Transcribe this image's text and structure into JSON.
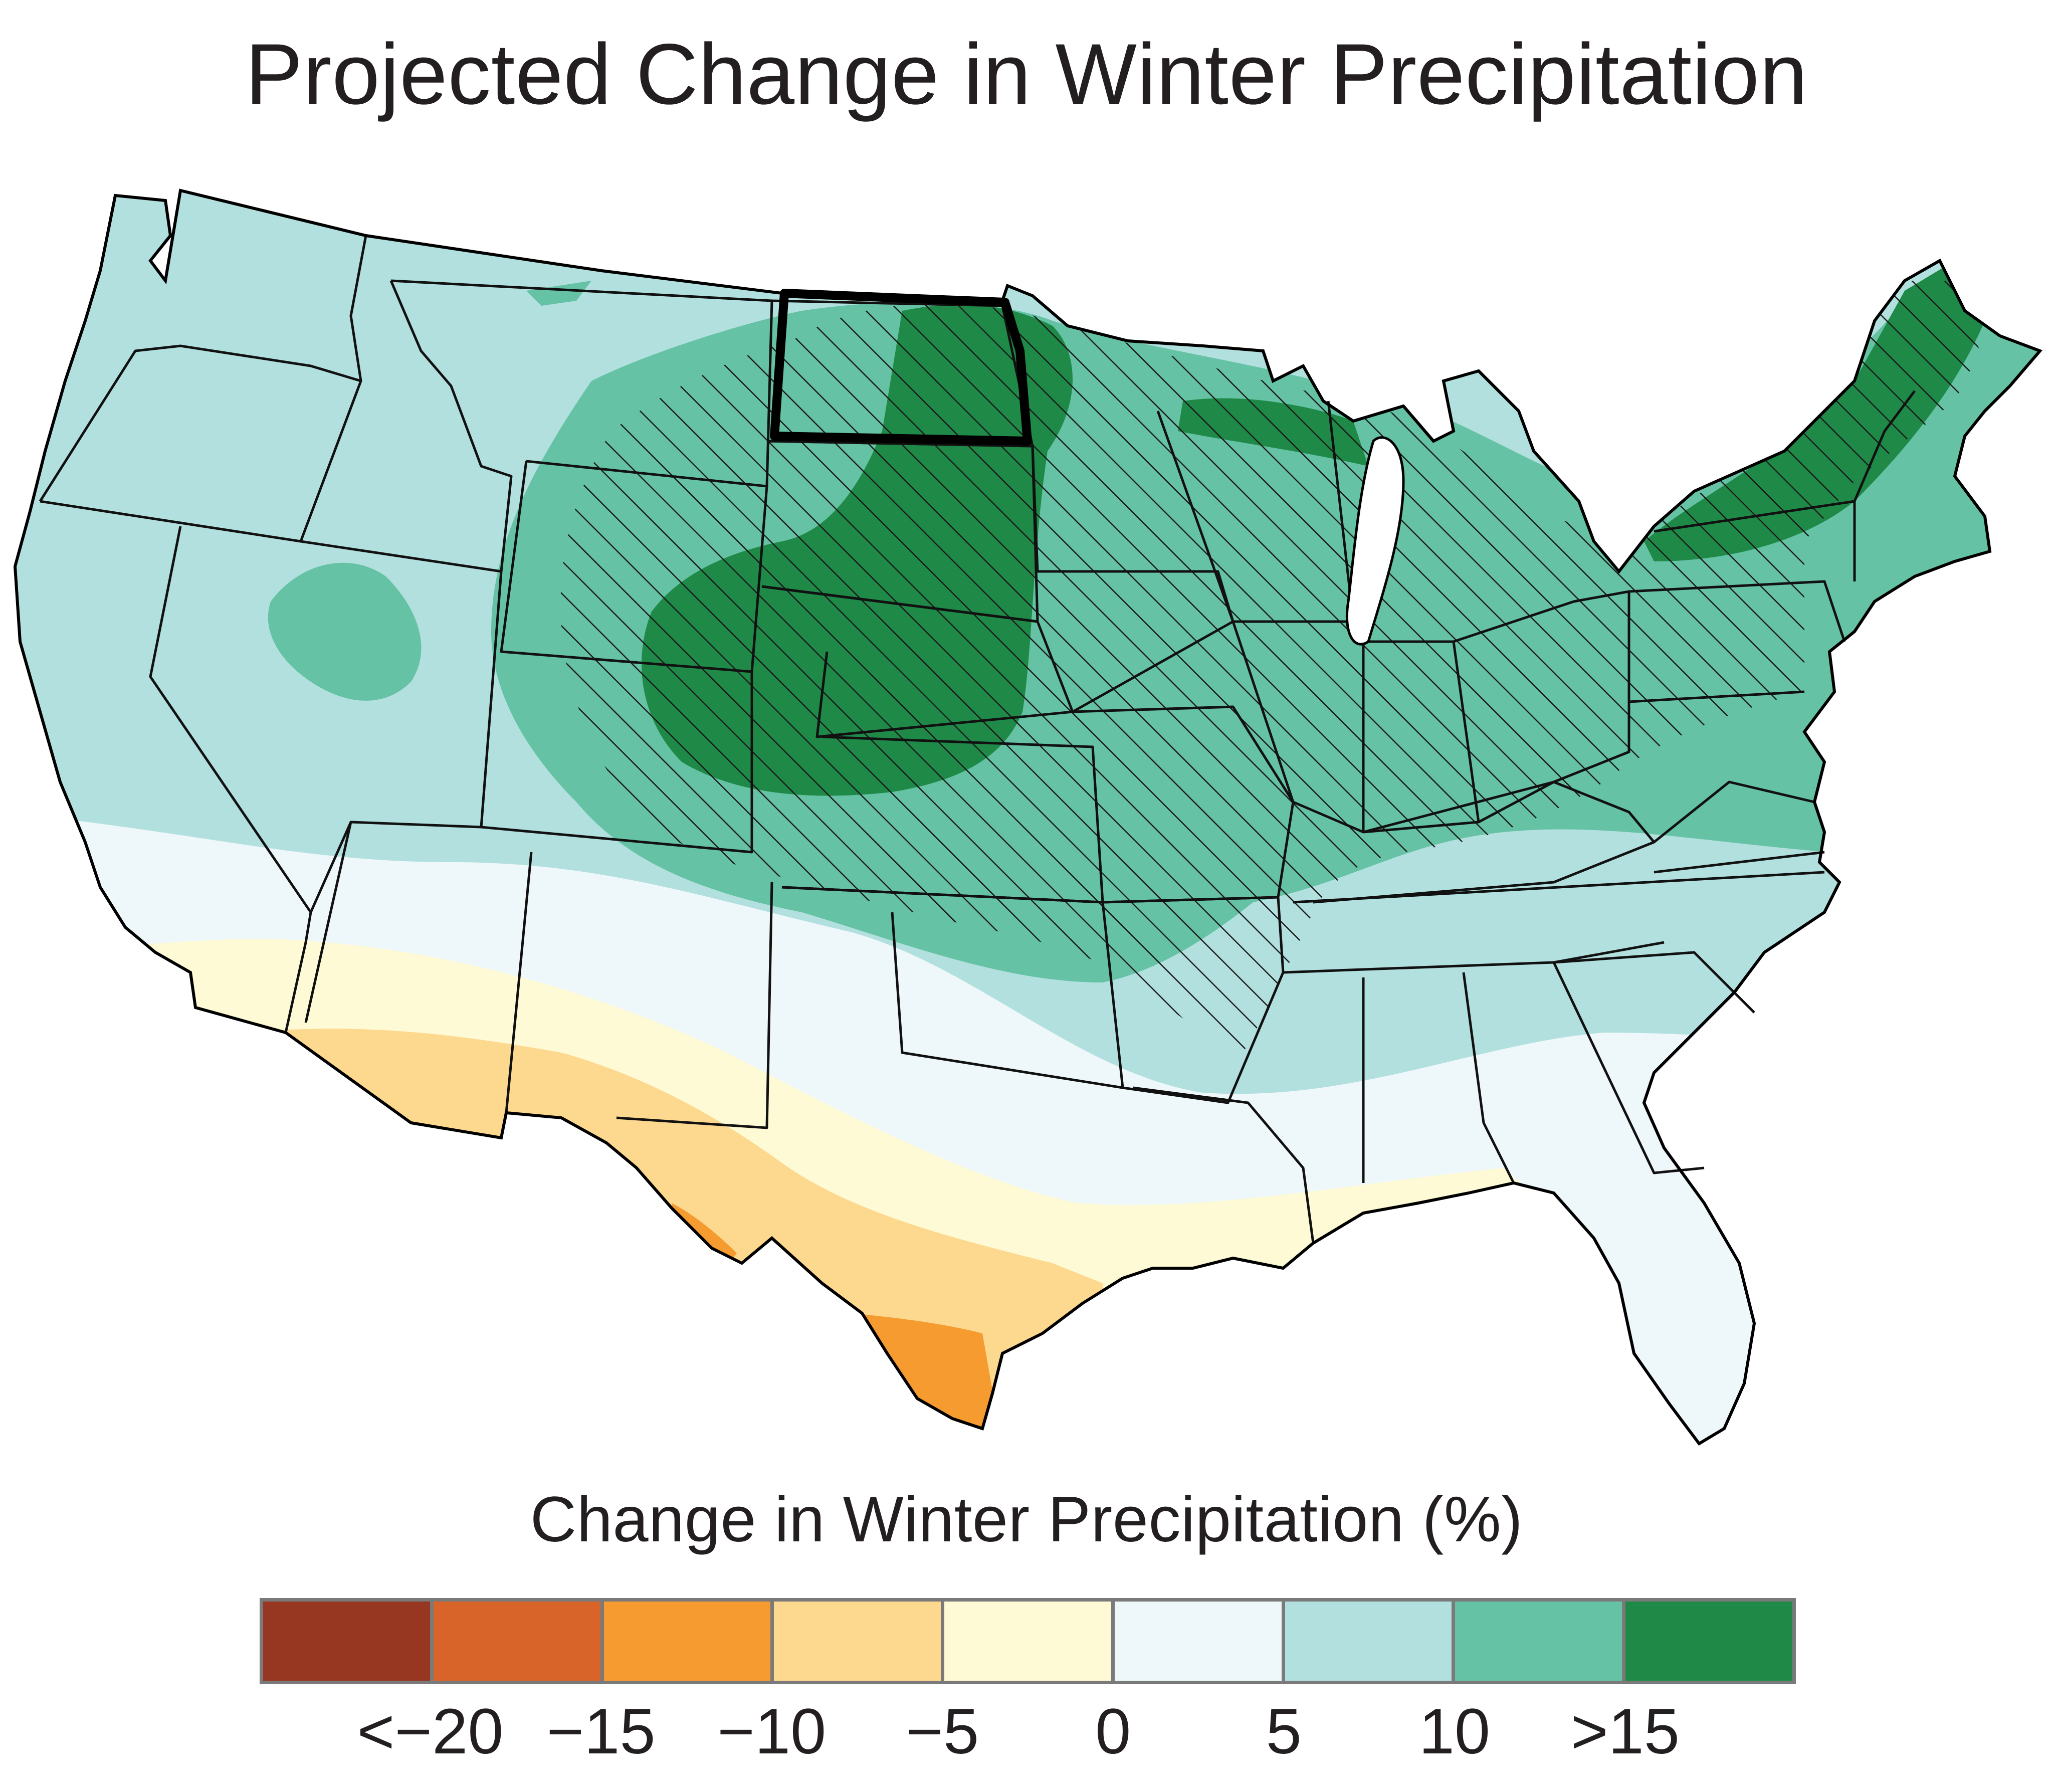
{
  "title": "Projected Change in Winter Precipitation",
  "legend": {
    "title": "Change in Winter Precipitation (%)",
    "bins": [
      {
        "color": "#973621"
      },
      {
        "color": "#d9642a"
      },
      {
        "color": "#f59b30"
      },
      {
        "color": "#fdd98f"
      },
      {
        "color": "#fefad5"
      },
      {
        "color": "#eef7fa"
      },
      {
        "color": "#b2e0df"
      },
      {
        "color": "#66c2a4"
      },
      {
        "color": "#1f8a48"
      }
    ],
    "ticks": [
      "<−20",
      "−15",
      "−10",
      "−5",
      "0",
      "5",
      "10",
      ">15"
    ]
  },
  "map": {
    "region": "Contiguous United States",
    "highlighted_state": "North Dakota",
    "hatching": "diagonal lines",
    "colors": {
      "outline": "#000000",
      "hatch": "#1a1a1a",
      "state_border": "#111111"
    }
  }
}
